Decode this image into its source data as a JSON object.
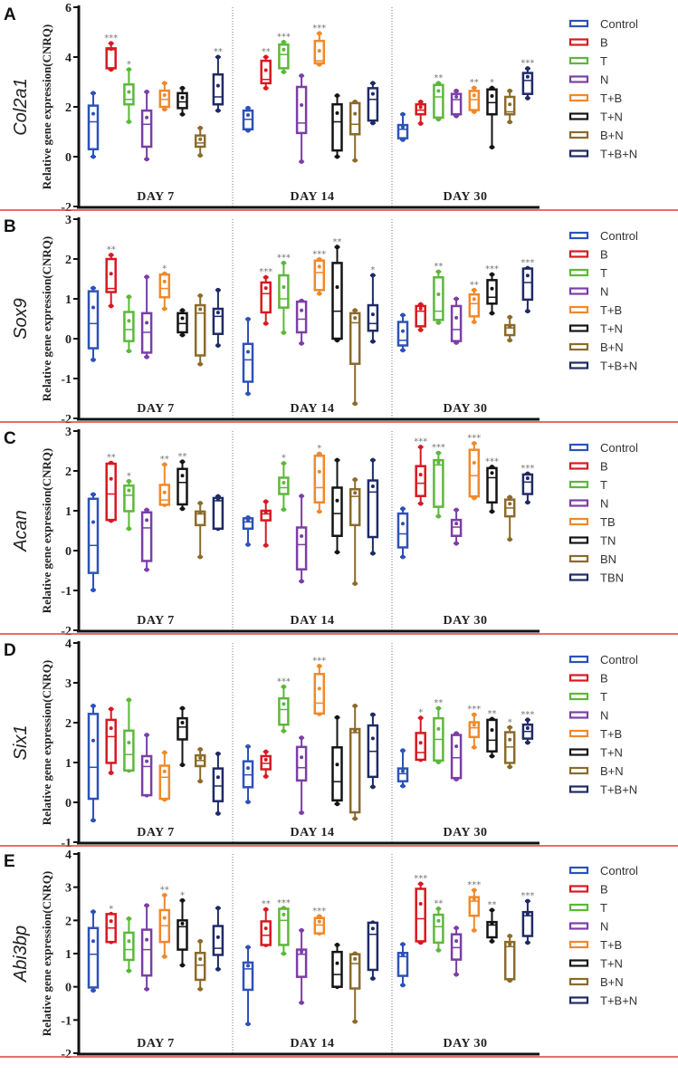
{
  "colors": [
    "#2d52b8",
    "#d71920",
    "#5cb83a",
    "#7b3fa6",
    "#f0892a",
    "#141414",
    "#8b6a2b",
    "#1f2a66"
  ],
  "chart_data": [
    {
      "type": "box",
      "letter": "A",
      "gene": "Col2a1",
      "ylabel": "Relative gene expression(CNRQ)",
      "ylim": [
        -2,
        6
      ],
      "yticks": [
        6,
        4,
        2,
        0,
        -2
      ],
      "categories": [
        "DAY 7",
        "DAY 14",
        "DAY 30"
      ],
      "legend": [
        "Control",
        "B",
        "T",
        "N",
        "T+B",
        "T+N",
        "B+N",
        "T+B+N"
      ],
      "box_fields": [
        "min",
        "q1",
        "median",
        "q3",
        "max",
        "significance"
      ],
      "boxes": [
        [
          [
            0.0,
            0.3,
            1.4,
            2.05,
            2.55,
            ""
          ],
          [
            3.5,
            3.55,
            4.3,
            4.35,
            4.55,
            "***"
          ],
          [
            1.4,
            2.1,
            2.3,
            2.9,
            3.5,
            "*"
          ],
          [
            -0.1,
            0.4,
            1.3,
            1.85,
            2.6,
            ""
          ],
          [
            1.9,
            2.0,
            2.3,
            2.65,
            2.95,
            ""
          ],
          [
            1.7,
            1.95,
            2.2,
            2.55,
            2.75,
            ""
          ],
          [
            0.05,
            0.4,
            0.55,
            0.85,
            1.15,
            ""
          ],
          [
            1.85,
            2.1,
            2.4,
            3.3,
            4.0,
            "**"
          ]
        ],
        [
          [
            1.05,
            1.1,
            1.5,
            1.85,
            1.95,
            ""
          ],
          [
            2.75,
            2.95,
            3.1,
            3.85,
            4.0,
            "**"
          ],
          [
            3.4,
            3.55,
            4.1,
            4.5,
            4.6,
            "***"
          ],
          [
            -0.2,
            0.95,
            1.35,
            2.8,
            3.25,
            ""
          ],
          [
            3.7,
            3.75,
            3.85,
            4.65,
            4.95,
            "***"
          ],
          [
            0.0,
            0.25,
            1.4,
            2.1,
            2.45,
            ""
          ],
          [
            -0.15,
            0.9,
            1.3,
            2.15,
            2.2,
            ""
          ],
          [
            1.35,
            1.45,
            2.3,
            2.75,
            2.95,
            ""
          ]
        ],
        [
          [
            0.68,
            0.74,
            1.1,
            1.27,
            1.7,
            ""
          ],
          [
            1.33,
            1.7,
            1.87,
            2.1,
            2.2,
            ""
          ],
          [
            1.5,
            1.57,
            2.4,
            2.88,
            2.95,
            "**"
          ],
          [
            1.63,
            1.7,
            2.29,
            2.52,
            2.64,
            ""
          ],
          [
            1.8,
            1.87,
            2.29,
            2.64,
            2.76,
            "**"
          ],
          [
            0.38,
            1.7,
            2.17,
            2.7,
            2.76,
            "*"
          ],
          [
            1.39,
            1.7,
            1.8,
            2.4,
            2.64,
            ""
          ],
          [
            2.35,
            2.52,
            3.06,
            3.36,
            3.54,
            "***"
          ]
        ]
      ]
    },
    {
      "type": "box",
      "letter": "B",
      "gene": "Sox9",
      "ylabel": "Relative gene expression(CNRQ)",
      "ylim": [
        -2,
        3
      ],
      "yticks": [
        3,
        2,
        1,
        0,
        -1,
        -2
      ],
      "categories": [
        "DAY 7",
        "DAY 14",
        "DAY 30"
      ],
      "legend": [
        "Control",
        "B",
        "T",
        "N",
        "T+B",
        "T+N",
        "B+N",
        "T+B+N"
      ],
      "box_fields": [
        "min",
        "q1",
        "median",
        "q3",
        "max",
        "significance"
      ],
      "boxes": [
        [
          [
            -0.53,
            -0.24,
            0.38,
            1.19,
            1.27,
            ""
          ],
          [
            0.82,
            1.17,
            1.26,
            2.0,
            2.1,
            "**"
          ],
          [
            -0.31,
            -0.06,
            0.23,
            0.67,
            1.05,
            ""
          ],
          [
            -0.46,
            -0.35,
            0.16,
            0.64,
            1.55,
            ""
          ],
          [
            0.75,
            1.04,
            1.26,
            1.61,
            1.63,
            "*"
          ],
          [
            0.09,
            0.16,
            0.38,
            0.64,
            0.71,
            ""
          ],
          [
            -0.64,
            -0.42,
            0.64,
            0.84,
            1.08,
            ""
          ],
          [
            -0.17,
            0.12,
            0.56,
            0.75,
            1.22,
            ""
          ]
        ],
        [
          [
            -1.38,
            -1.08,
            -0.53,
            -0.13,
            0.49,
            ""
          ],
          [
            0.38,
            0.66,
            1.13,
            1.41,
            1.54,
            "***"
          ],
          [
            0.15,
            0.78,
            1.0,
            1.59,
            1.9,
            "***"
          ],
          [
            -0.12,
            0.16,
            0.49,
            0.93,
            0.95,
            ""
          ],
          [
            1.13,
            1.22,
            1.66,
            1.96,
            1.99,
            "***"
          ],
          [
            -0.04,
            0.0,
            0.69,
            1.9,
            2.3,
            "**"
          ],
          [
            -1.63,
            -0.63,
            0.4,
            0.64,
            0.71,
            ""
          ],
          [
            -0.07,
            0.2,
            0.38,
            0.84,
            1.59,
            "*"
          ]
        ],
        [
          [
            -0.29,
            -0.17,
            -0.04,
            0.42,
            0.59,
            ""
          ],
          [
            0.22,
            0.31,
            0.69,
            0.82,
            0.86,
            ""
          ],
          [
            0.4,
            0.47,
            0.69,
            1.54,
            1.68,
            "**"
          ],
          [
            -0.1,
            -0.06,
            0.23,
            0.82,
            1.0,
            ""
          ],
          [
            0.42,
            0.56,
            0.88,
            1.11,
            1.22,
            "**"
          ],
          [
            0.64,
            0.88,
            1.04,
            1.47,
            1.61,
            "***"
          ],
          [
            -0.04,
            0.09,
            0.27,
            0.34,
            0.54,
            ""
          ],
          [
            0.69,
            0.98,
            1.41,
            1.76,
            1.77,
            "***"
          ]
        ]
      ]
    },
    {
      "type": "box",
      "letter": "C",
      "gene": "Acan",
      "ylabel": "Relative gene expression(CNRQ)",
      "ylim": [
        -2,
        3
      ],
      "yticks": [
        3,
        2,
        1,
        0,
        -1,
        -2
      ],
      "categories": [
        "DAY 7",
        "DAY 14",
        "DAY 30"
      ],
      "legend": [
        "Control",
        "B",
        "T",
        "N",
        "TB",
        "TN",
        "BN",
        "TBN"
      ],
      "box_fields": [
        "min",
        "q1",
        "median",
        "q3",
        "max",
        "significance"
      ],
      "boxes": [
        [
          [
            -0.99,
            -0.56,
            0.13,
            1.3,
            1.41,
            ""
          ],
          [
            0.75,
            0.77,
            1.42,
            2.18,
            2.2,
            "**"
          ],
          [
            0.55,
            0.99,
            1.39,
            1.63,
            1.74,
            "*"
          ],
          [
            -0.48,
            -0.26,
            0.57,
            0.96,
            1.02,
            ""
          ],
          [
            1.15,
            1.15,
            1.27,
            1.65,
            2.16,
            "**"
          ],
          [
            1.05,
            1.16,
            1.71,
            2.05,
            2.23,
            "**"
          ],
          [
            -0.16,
            0.64,
            0.92,
            0.98,
            1.19,
            ""
          ],
          [
            0.55,
            0.55,
            1.25,
            1.32,
            1.36,
            ""
          ]
        ],
        [
          [
            0.15,
            0.55,
            0.72,
            0.81,
            0.83,
            ""
          ],
          [
            0.13,
            0.76,
            0.92,
            1.0,
            1.23,
            ""
          ],
          [
            1.03,
            1.42,
            1.58,
            1.83,
            2.19,
            "*"
          ],
          [
            -0.77,
            -0.47,
            0.15,
            0.58,
            1.37,
            ""
          ],
          [
            0.98,
            1.21,
            1.58,
            2.38,
            2.43,
            "*"
          ],
          [
            -0.04,
            0.37,
            0.93,
            1.58,
            2.27,
            ""
          ],
          [
            -0.83,
            0.64,
            1.36,
            1.54,
            1.78,
            ""
          ],
          [
            -0.07,
            0.34,
            1.47,
            1.76,
            2.27,
            ""
          ]
        ],
        [
          [
            -0.16,
            0.08,
            0.42,
            0.93,
            1.05,
            ""
          ],
          [
            1.18,
            1.37,
            1.69,
            2.12,
            2.6,
            "***"
          ],
          [
            0.86,
            1.1,
            2.15,
            2.27,
            2.45,
            "***"
          ],
          [
            0.18,
            0.37,
            0.59,
            0.77,
            1.02,
            ""
          ],
          [
            1.32,
            1.36,
            1.88,
            2.53,
            2.69,
            "***"
          ],
          [
            0.98,
            1.21,
            1.83,
            2.07,
            2.1,
            "***"
          ],
          [
            0.28,
            0.86,
            1.07,
            1.28,
            1.34,
            ""
          ],
          [
            1.21,
            1.42,
            1.72,
            1.91,
            1.93,
            "***"
          ]
        ]
      ]
    },
    {
      "type": "box",
      "letter": "D",
      "gene": "Six1",
      "ylabel": "Relative gene expression(CNRQ)",
      "ylim": [
        -1,
        4
      ],
      "yticks": [
        4,
        3,
        2,
        1,
        0,
        -1
      ],
      "categories": [
        "DAY 7",
        "DAY 14",
        "DAY 30"
      ],
      "legend": [
        "Control",
        "B",
        "T",
        "N",
        "T+B",
        "T+N",
        "B+N",
        "T+B+N"
      ],
      "box_fields": [
        "min",
        "q1",
        "median",
        "q3",
        "max",
        "significance"
      ],
      "boxes": [
        [
          [
            -0.45,
            0.09,
            0.88,
            2.22,
            2.42,
            ""
          ],
          [
            0.74,
            0.99,
            1.65,
            2.07,
            2.34,
            ""
          ],
          [
            0.8,
            0.8,
            1.2,
            1.8,
            2.57,
            ""
          ],
          [
            0.18,
            0.18,
            0.9,
            1.16,
            1.69,
            ""
          ],
          [
            0.07,
            0.09,
            0.63,
            0.92,
            1.25,
            ""
          ],
          [
            0.94,
            1.58,
            1.89,
            2.11,
            2.36,
            ""
          ],
          [
            0.53,
            0.91,
            1.05,
            1.18,
            1.33,
            ""
          ],
          [
            -0.28,
            0.03,
            0.41,
            0.85,
            1.22,
            ""
          ]
        ],
        [
          [
            0.01,
            0.38,
            0.69,
            1.03,
            1.4,
            ""
          ],
          [
            0.65,
            0.83,
            0.98,
            1.16,
            1.27,
            ""
          ],
          [
            1.79,
            1.95,
            2.33,
            2.61,
            2.9,
            "***"
          ],
          [
            -0.26,
            0.55,
            0.87,
            1.39,
            1.62,
            ""
          ],
          [
            2.22,
            2.23,
            2.49,
            3.22,
            3.42,
            "***"
          ],
          [
            -0.04,
            0.05,
            0.52,
            1.38,
            2.13,
            ""
          ],
          [
            -0.41,
            -0.25,
            1.75,
            1.84,
            2.42,
            ""
          ],
          [
            0.39,
            0.64,
            1.28,
            1.93,
            2.2,
            ""
          ]
        ],
        [
          [
            0.41,
            0.53,
            0.72,
            0.85,
            1.3,
            ""
          ],
          [
            1.07,
            1.07,
            1.25,
            1.74,
            2.12,
            "*"
          ],
          [
            1.01,
            1.05,
            1.58,
            2.11,
            2.36,
            "**"
          ],
          [
            0.58,
            0.61,
            1.12,
            1.69,
            1.73,
            ""
          ],
          [
            1.38,
            1.64,
            1.87,
            2.01,
            2.2,
            "***"
          ],
          [
            1.16,
            1.28,
            1.56,
            2.07,
            2.09,
            "**"
          ],
          [
            0.89,
            0.99,
            1.39,
            1.76,
            1.88,
            "*"
          ],
          [
            1.5,
            1.6,
            1.78,
            1.95,
            2.07,
            "***"
          ]
        ]
      ]
    },
    {
      "type": "box",
      "letter": "E",
      "gene": "Abi3bp",
      "ylabel": "Relative gene expression(CNRQ)",
      "ylim": [
        -2,
        4
      ],
      "yticks": [
        4,
        3,
        2,
        1,
        0,
        -1,
        -2
      ],
      "categories": [
        "DAY 7",
        "DAY 14",
        "DAY 30"
      ],
      "legend": [
        "Control",
        "B",
        "T",
        "N",
        "T+B",
        "T+N",
        "B+N",
        "T+B+N"
      ],
      "box_fields": [
        "min",
        "q1",
        "median",
        "q3",
        "max",
        "significance"
      ],
      "boxes": [
        [
          [
            -0.11,
            -0.02,
            0.98,
            1.77,
            2.26,
            ""
          ],
          [
            1.35,
            1.35,
            1.77,
            2.19,
            2.19,
            "*"
          ],
          [
            0.48,
            0.81,
            1.12,
            1.63,
            2.05,
            ""
          ],
          [
            -0.07,
            0.34,
            1.12,
            1.72,
            2.45,
            ""
          ],
          [
            0.91,
            1.35,
            1.84,
            2.31,
            2.76,
            "**"
          ],
          [
            0.65,
            1.12,
            1.81,
            2.0,
            2.6,
            "*"
          ],
          [
            -0.07,
            0.21,
            0.65,
            1.02,
            1.37,
            ""
          ],
          [
            0.53,
            0.96,
            1.16,
            1.83,
            2.37,
            ""
          ]
        ],
        [
          [
            -1.12,
            -0.09,
            0.54,
            0.73,
            1.19,
            ""
          ],
          [
            1.26,
            1.26,
            1.55,
            1.97,
            2.33,
            "**"
          ],
          [
            1.0,
            1.26,
            2.0,
            2.35,
            2.37,
            "***"
          ],
          [
            -0.48,
            0.3,
            0.98,
            1.12,
            1.7,
            ""
          ],
          [
            1.61,
            1.61,
            1.86,
            2.07,
            2.12,
            "***"
          ],
          [
            0.0,
            0.0,
            0.37,
            1.05,
            1.26,
            ""
          ],
          [
            -1.05,
            -0.05,
            0.7,
            0.98,
            1.0,
            ""
          ],
          [
            0.25,
            0.51,
            1.58,
            1.93,
            1.93,
            ""
          ]
        ],
        [
          [
            0.05,
            0.33,
            0.91,
            1.02,
            1.28,
            ""
          ],
          [
            1.33,
            1.37,
            2.05,
            2.95,
            3.1,
            "***"
          ],
          [
            1.1,
            1.33,
            1.81,
            2.17,
            2.35,
            "**"
          ],
          [
            0.37,
            0.82,
            1.18,
            1.58,
            1.77,
            ""
          ],
          [
            1.7,
            2.14,
            2.58,
            2.7,
            2.91,
            "***"
          ],
          [
            1.37,
            1.49,
            1.86,
            1.95,
            2.31,
            "**"
          ],
          [
            0.19,
            0.23,
            1.21,
            1.35,
            1.53,
            ""
          ],
          [
            1.33,
            1.53,
            2.14,
            2.25,
            2.58,
            "***"
          ]
        ]
      ]
    }
  ]
}
